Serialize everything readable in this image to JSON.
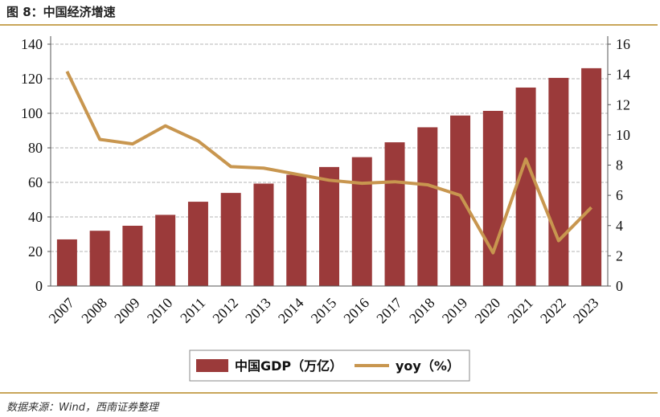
{
  "figure": {
    "title": "图 8：中国经济增速",
    "source": "数据来源：Wind，西南证券整理"
  },
  "colors": {
    "bar": "#9b3a3a",
    "line": "#c8964f",
    "grid": "#b5b5b5",
    "rule": "#c9a65a"
  },
  "chart_data": {
    "type": "bar",
    "categories": [
      "2007",
      "2008",
      "2009",
      "2010",
      "2011",
      "2012",
      "2013",
      "2014",
      "2015",
      "2016",
      "2017",
      "2018",
      "2019",
      "2020",
      "2021",
      "2022",
      "2023"
    ],
    "series": [
      {
        "name": "中国GDP（万亿）",
        "type": "bar",
        "axis": "left",
        "values": [
          27.0,
          32.0,
          34.9,
          41.2,
          48.8,
          53.9,
          59.3,
          64.4,
          68.9,
          74.6,
          83.2,
          91.9,
          98.7,
          101.4,
          114.9,
          120.5,
          126.1
        ]
      },
      {
        "name": "yoy（%）",
        "type": "line",
        "axis": "right",
        "values": [
          14.2,
          9.7,
          9.4,
          10.6,
          9.6,
          7.9,
          7.8,
          7.4,
          7.0,
          6.8,
          6.9,
          6.7,
          6.0,
          2.2,
          8.4,
          3.0,
          5.2
        ]
      }
    ],
    "y_left": {
      "ylim": [
        0,
        140
      ],
      "ticks": [
        "0",
        "20",
        "40",
        "60",
        "80",
        "100",
        "120",
        "140"
      ]
    },
    "y_right": {
      "ylim": [
        0,
        16
      ],
      "ticks": [
        "0",
        "2",
        "4",
        "6",
        "8",
        "10",
        "12",
        "14",
        "16"
      ]
    },
    "grid": true,
    "legend_position": "bottom"
  }
}
